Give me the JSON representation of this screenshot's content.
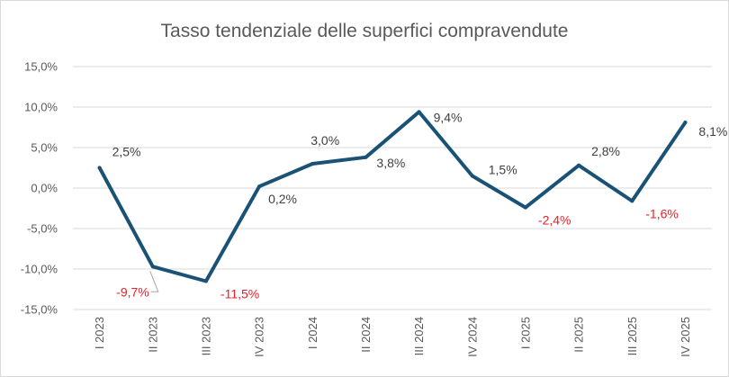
{
  "chart_data": {
    "type": "line",
    "title": "Tasso tendenziale delle superfici compravendute",
    "xlabel": "",
    "ylabel": "",
    "categories": [
      "I 2023",
      "II 2023",
      "III 2023",
      "IV 2023",
      "I 2024",
      "II 2024",
      "III 2024",
      "IV 2024",
      "I 2025",
      "II 2025",
      "III 2025",
      "IV 2025"
    ],
    "series": [
      {
        "name": "Tasso tendenziale",
        "values": [
          2.5,
          -9.7,
          -11.5,
          0.2,
          3.0,
          3.8,
          9.4,
          1.5,
          -2.4,
          2.8,
          -1.6,
          8.1
        ],
        "labels": [
          "2,5%",
          "-9,7%",
          "-11,5%",
          "0,2%",
          "3,0%",
          "3,8%",
          "9,4%",
          "1,5%",
          "-2,4%",
          "2,8%",
          "-1,6%",
          "8,1%"
        ]
      }
    ],
    "ylim": [
      -15,
      15
    ],
    "yticks": [
      15,
      10,
      5,
      0,
      -5,
      -10,
      -15
    ],
    "ytick_labels": [
      "15,0%",
      "10,0%",
      "5,0%",
      "0,0%",
      "-5,0%",
      "-10,0%",
      "-15,0%"
    ],
    "grid": true,
    "legend": "none",
    "colors": {
      "line": "#1a5276",
      "positive_label": "#404040",
      "negative_label": "#e8202a",
      "grid": "#d9d9d9",
      "axis_text": "#595959"
    }
  }
}
